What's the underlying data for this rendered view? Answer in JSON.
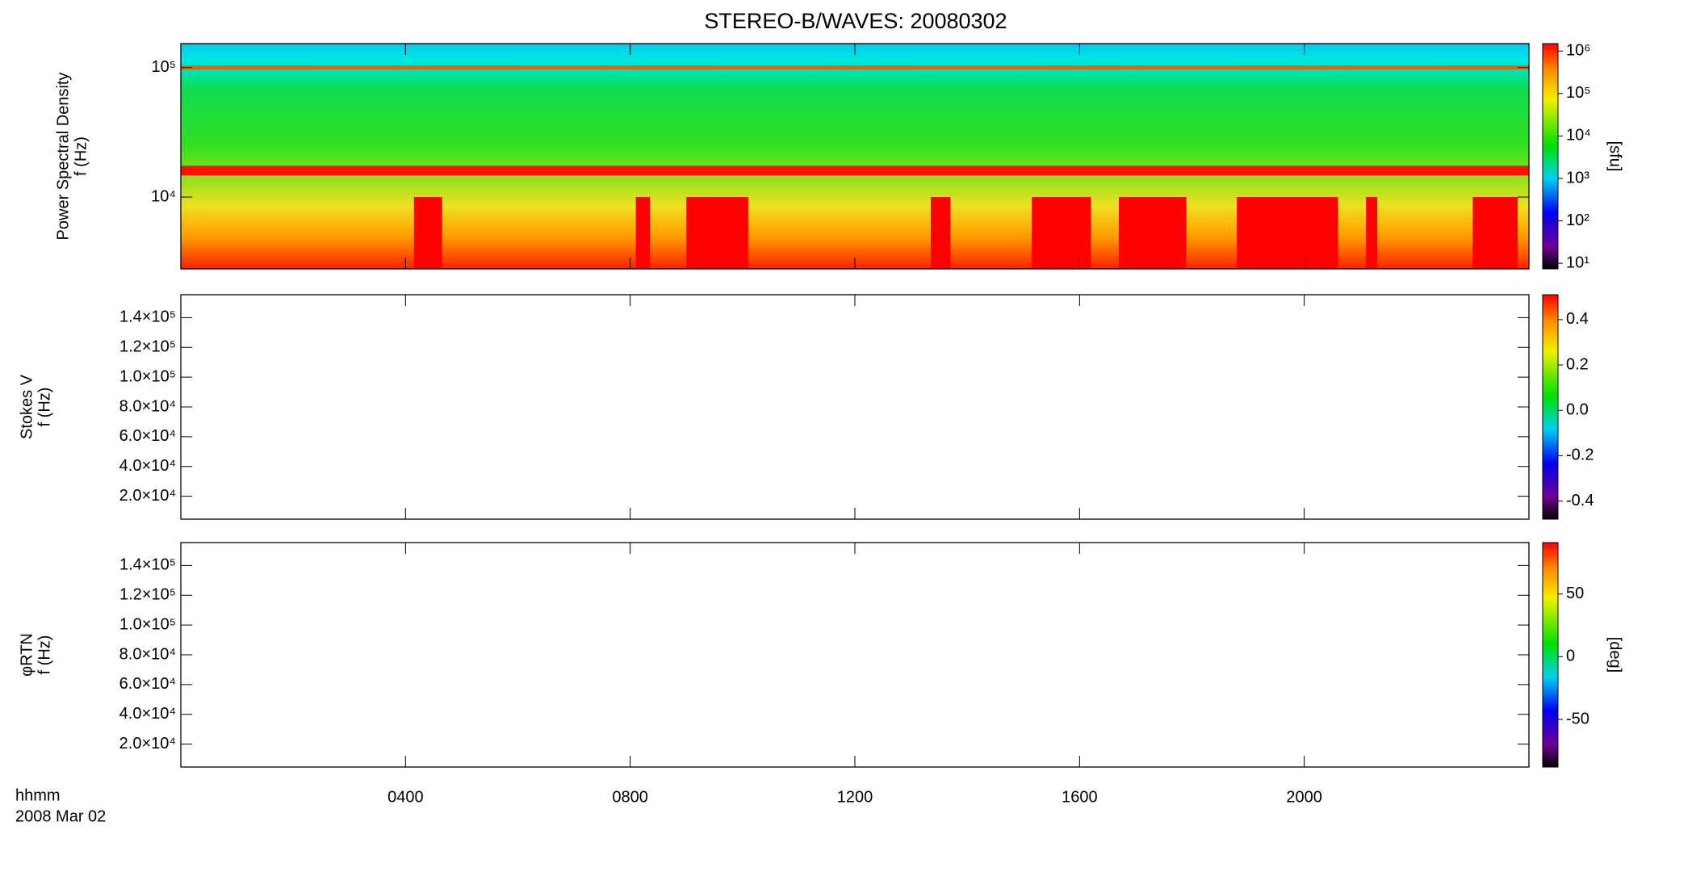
{
  "title": "STEREO-B/WAVES: 20080302",
  "x_axis": {
    "xlim": [
      0,
      24
    ],
    "xticks": [
      {
        "value": 4,
        "label": "0400"
      },
      {
        "value": 8,
        "label": "0800"
      },
      {
        "value": 12,
        "label": "1200"
      },
      {
        "value": 16,
        "label": "1600"
      },
      {
        "value": 20,
        "label": "2000"
      }
    ],
    "labels": [
      "hhmm",
      "2008 Mar 02"
    ]
  },
  "chart_data": [
    {
      "type": "spectrogram",
      "ylabel": [
        "Power Spectral Density",
        "f (Hz)"
      ],
      "log_y": true,
      "ylim": [
        2790,
        153000
      ],
      "yticks": [
        {
          "value": 10000,
          "label": "10⁴"
        },
        {
          "value": 100000,
          "label": "10⁵"
        }
      ],
      "zlim": [
        7.4,
        1500000
      ],
      "log_z": true,
      "zticks": [
        {
          "value": 10,
          "label": "10¹"
        },
        {
          "value": 100,
          "label": "10²"
        },
        {
          "value": 1000,
          "label": "10³"
        },
        {
          "value": 10000,
          "label": "10⁴"
        },
        {
          "value": 100000,
          "label": "10⁵"
        },
        {
          "value": 1000000,
          "label": "10⁶"
        }
      ],
      "zlabel": "[sfu]",
      "bands": [
        {
          "f": 100000,
          "color": "#ff5a00"
        },
        {
          "f": 16000,
          "color": "#ff1000"
        }
      ],
      "burst_fmax": 10000,
      "burst_color": "#ff0000",
      "bursts": [
        [
          4.15,
          4.65
        ],
        [
          8.1,
          8.35
        ],
        [
          9.0,
          10.1
        ],
        [
          13.35,
          13.7
        ],
        [
          15.15,
          16.2
        ],
        [
          16.7,
          17.9
        ],
        [
          18.8,
          20.6
        ],
        [
          21.1,
          21.3
        ],
        [
          23.0,
          23.8
        ]
      ]
    },
    {
      "type": "spectrogram",
      "ylabel": [
        "Stokes V",
        "f (Hz)"
      ],
      "log_y": false,
      "ylim": [
        4600,
        155400
      ],
      "yticks": [
        {
          "value": 20000,
          "label": "2.0×10⁴"
        },
        {
          "value": 40000,
          "label": "4.0×10⁴"
        },
        {
          "value": 60000,
          "label": "6.0×10⁴"
        },
        {
          "value": 80000,
          "label": "8.0×10⁴"
        },
        {
          "value": 100000,
          "label": "1.0×10⁵"
        },
        {
          "value": 120000,
          "label": "1.2×10⁵"
        },
        {
          "value": 140000,
          "label": "1.4×10⁵"
        }
      ],
      "zlim": [
        -0.48,
        0.51
      ],
      "log_z": false,
      "zticks": [
        -0.4,
        -0.2,
        {
          "value": 0,
          "label": "0.0"
        },
        0.2,
        0.4
      ]
    },
    {
      "type": "spectrogram",
      "ylabel": [
        "φRTN",
        "f (Hz)"
      ],
      "log_y": false,
      "ylim": [
        4600,
        155400
      ],
      "yticks": [
        {
          "value": 20000,
          "label": "2.0×10⁴"
        },
        {
          "value": 40000,
          "label": "4.0×10⁴"
        },
        {
          "value": 60000,
          "label": "6.0×10⁴"
        },
        {
          "value": 80000,
          "label": "8.0×10⁴"
        },
        {
          "value": 100000,
          "label": "1.0×10⁵"
        },
        {
          "value": 120000,
          "label": "1.2×10⁵"
        },
        {
          "value": 140000,
          "label": "1.4×10⁵"
        }
      ],
      "zlim": [
        -88,
        91
      ],
      "log_z": false,
      "zticks": [
        -50,
        0,
        50
      ],
      "zlabel": "[deg]"
    }
  ]
}
